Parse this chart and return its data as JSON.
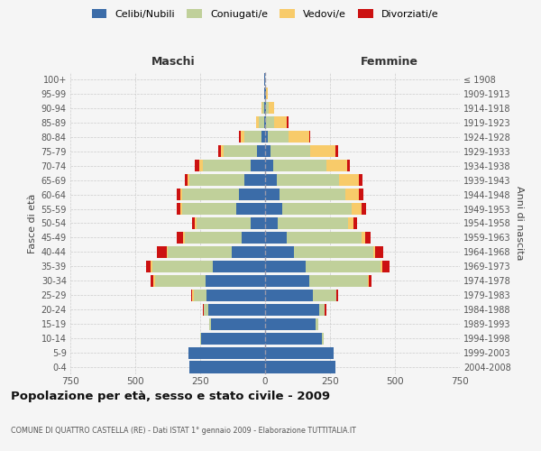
{
  "age_groups": [
    "0-4",
    "5-9",
    "10-14",
    "15-19",
    "20-24",
    "25-29",
    "30-34",
    "35-39",
    "40-44",
    "45-49",
    "50-54",
    "55-59",
    "60-64",
    "65-69",
    "70-74",
    "75-79",
    "80-84",
    "85-89",
    "90-94",
    "95-99",
    "100+"
  ],
  "birth_years": [
    "2004-2008",
    "1999-2003",
    "1994-1998",
    "1989-1993",
    "1984-1988",
    "1979-1983",
    "1974-1978",
    "1969-1973",
    "1964-1968",
    "1959-1963",
    "1954-1958",
    "1949-1953",
    "1944-1948",
    "1939-1943",
    "1934-1938",
    "1929-1933",
    "1924-1928",
    "1919-1923",
    "1914-1918",
    "1909-1913",
    "≤ 1908"
  ],
  "male": {
    "celibi": [
      290,
      295,
      245,
      210,
      220,
      225,
      230,
      200,
      130,
      90,
      55,
      110,
      100,
      80,
      55,
      30,
      15,
      5,
      5,
      2,
      2
    ],
    "coniugati": [
      0,
      0,
      5,
      5,
      15,
      50,
      195,
      235,
      245,
      220,
      210,
      210,
      220,
      210,
      185,
      130,
      65,
      20,
      5,
      0,
      0
    ],
    "vedovi": [
      0,
      0,
      0,
      0,
      0,
      5,
      5,
      5,
      5,
      5,
      5,
      5,
      5,
      10,
      15,
      10,
      15,
      10,
      5,
      0,
      0
    ],
    "divorziati": [
      0,
      0,
      0,
      0,
      5,
      5,
      10,
      20,
      35,
      25,
      10,
      15,
      15,
      10,
      15,
      10,
      5,
      0,
      0,
      0,
      0
    ]
  },
  "female": {
    "nubili": [
      270,
      265,
      220,
      195,
      210,
      185,
      170,
      155,
      110,
      85,
      50,
      65,
      55,
      45,
      30,
      20,
      10,
      5,
      3,
      2,
      1
    ],
    "coniugate": [
      0,
      0,
      5,
      10,
      20,
      90,
      225,
      290,
      305,
      285,
      270,
      270,
      255,
      240,
      205,
      155,
      80,
      30,
      10,
      2,
      0
    ],
    "vedove": [
      0,
      0,
      0,
      0,
      0,
      0,
      5,
      5,
      10,
      15,
      20,
      35,
      50,
      75,
      80,
      95,
      80,
      50,
      20,
      5,
      0
    ],
    "divorziate": [
      0,
      0,
      0,
      0,
      5,
      5,
      10,
      30,
      30,
      20,
      15,
      20,
      20,
      15,
      10,
      10,
      5,
      5,
      0,
      0,
      0
    ]
  },
  "colors": {
    "celibi": "#3b6ca8",
    "coniugati": "#c0d09a",
    "vedovi": "#f8cb6a",
    "divorziati": "#cc1111"
  },
  "title": "Popolazione per età, sesso e stato civile - 2009",
  "subtitle": "COMUNE DI QUATTRO CASTELLA (RE) - Dati ISTAT 1° gennaio 2009 - Elaborazione TUTTITALIA.IT",
  "xlabel_left": "Maschi",
  "xlabel_right": "Femmine",
  "ylabel_left": "Fasce di età",
  "ylabel_right": "Anni di nascita",
  "xlim": 750,
  "xticks": [
    -750,
    -500,
    -250,
    0,
    250,
    500,
    750
  ],
  "bg_color": "#f5f5f5",
  "grid_color": "#cccccc"
}
